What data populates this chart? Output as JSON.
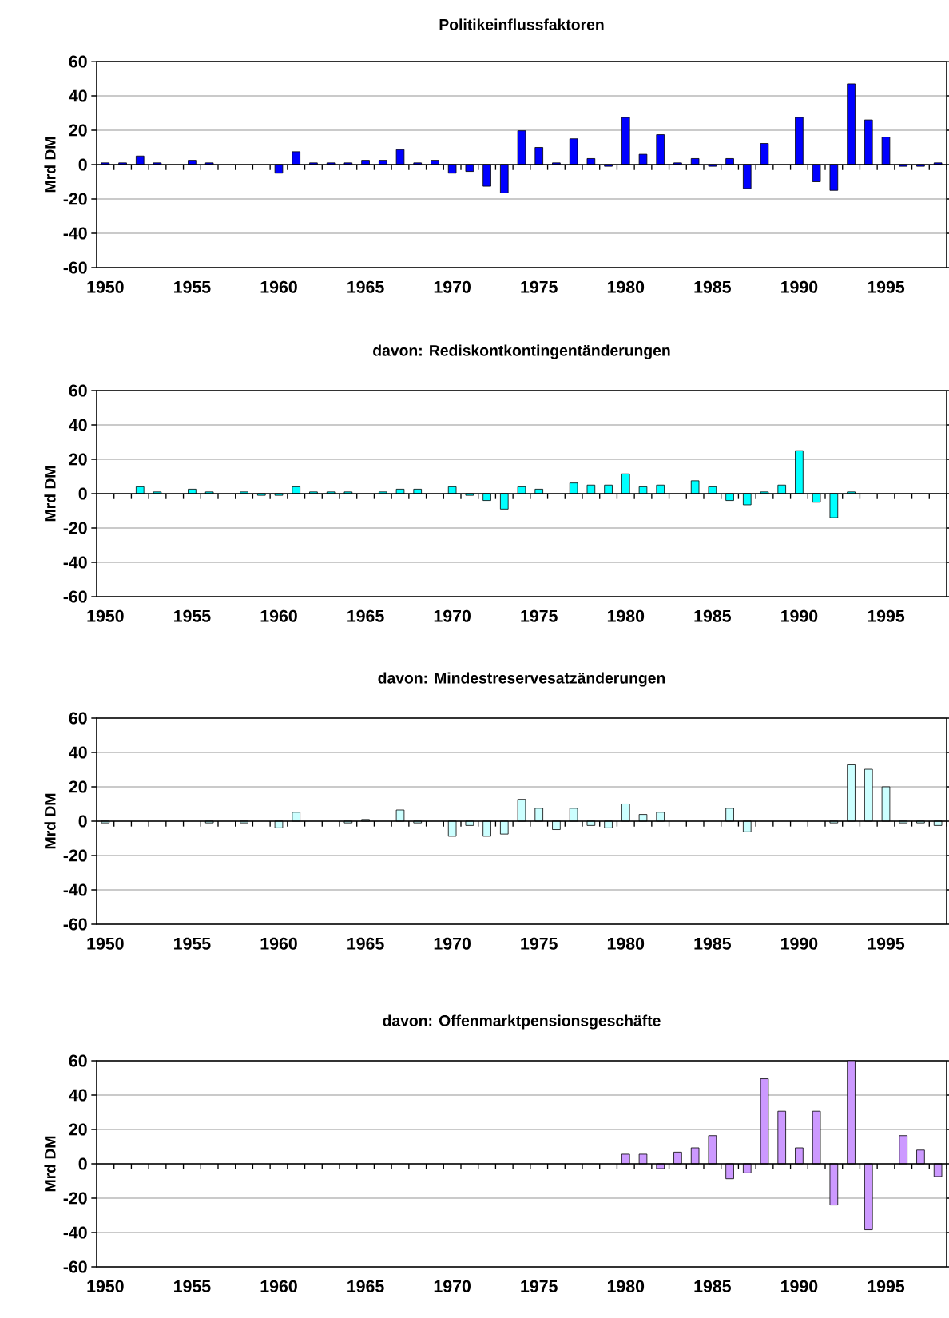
{
  "chart_data": [
    {
      "type": "bar",
      "title": "Politikeinflussfaktoren",
      "ylabel": "Mrd DM",
      "color": "#0000ff",
      "grid": "y",
      "ylim": [
        -60,
        60
      ],
      "yticks": [
        -60,
        -40,
        -20,
        0,
        20,
        40,
        60
      ],
      "categories": [
        "1950",
        null,
        null,
        null,
        null,
        "1955",
        null,
        null,
        null,
        null,
        "1960",
        null,
        null,
        null,
        null,
        "1965",
        null,
        null,
        null,
        null,
        "1970",
        null,
        null,
        null,
        null,
        "1975",
        null,
        null,
        null,
        null,
        "1980",
        null,
        null,
        null,
        null,
        "1985",
        null,
        null,
        null,
        null,
        "1990",
        null,
        null,
        null,
        null,
        "1995",
        null,
        null,
        null
      ],
      "values": [
        1,
        1,
        5,
        1,
        null,
        2.5,
        1,
        null,
        null,
        null,
        -5,
        7.5,
        1,
        1,
        1,
        2.5,
        2.5,
        8.7,
        1,
        2.5,
        -5,
        -4,
        -12.6,
        -16.5,
        19.7,
        10,
        1,
        15,
        3.5,
        -1,
        27.4,
        6,
        17.4,
        1,
        3.5,
        -1,
        3.5,
        -13.9,
        12.3,
        null,
        27.4,
        -10,
        -15,
        47,
        26,
        16,
        -1,
        -1,
        1
      ]
    },
    {
      "type": "bar",
      "title": "davon: Rediskontkontingentänderungen",
      "ylabel": "Mrd DM",
      "color": "#00ffff",
      "grid": "y",
      "ylim": [
        -60,
        60
      ],
      "yticks": [
        -60,
        -40,
        -20,
        0,
        20,
        40,
        60
      ],
      "categories": [
        "1950",
        null,
        null,
        null,
        null,
        "1955",
        null,
        null,
        null,
        null,
        "1960",
        null,
        null,
        null,
        null,
        "1965",
        null,
        null,
        null,
        null,
        "1970",
        null,
        null,
        null,
        null,
        "1975",
        null,
        null,
        null,
        null,
        "1980",
        null,
        null,
        null,
        null,
        "1985",
        null,
        null,
        null,
        null,
        "1990",
        null,
        null,
        null,
        null,
        "1995",
        null,
        null,
        null
      ],
      "values": [
        null,
        null,
        4,
        1,
        null,
        2.6,
        1,
        null,
        1,
        -1,
        -1,
        4,
        1,
        1,
        1,
        null,
        1,
        2.6,
        2.6,
        null,
        4,
        -1,
        -4,
        -9,
        4,
        2.6,
        null,
        6.2,
        5,
        5,
        11.5,
        4,
        5,
        null,
        7.5,
        4,
        -4,
        -6.5,
        1,
        5,
        25,
        -5,
        -14,
        1,
        null,
        null,
        null,
        null,
        null
      ]
    },
    {
      "type": "bar",
      "title": "davon: Mindestreservesatzänderungen",
      "ylabel": "Mrd DM",
      "color": "#ccffff",
      "grid": "y",
      "ylim": [
        -60,
        60
      ],
      "yticks": [
        -60,
        -40,
        -20,
        0,
        20,
        40,
        60
      ],
      "categories": [
        "1950",
        null,
        null,
        null,
        null,
        "1955",
        null,
        null,
        null,
        null,
        "1960",
        null,
        null,
        null,
        null,
        "1965",
        null,
        null,
        null,
        null,
        "1970",
        null,
        null,
        null,
        null,
        "1975",
        null,
        null,
        null,
        null,
        "1980",
        null,
        null,
        null,
        null,
        "1985",
        null,
        null,
        null,
        null,
        "1990",
        null,
        null,
        null,
        null,
        "1995",
        null,
        null,
        null
      ],
      "values": [
        -1,
        null,
        null,
        null,
        null,
        null,
        -1,
        null,
        -1,
        null,
        -3.9,
        5.2,
        null,
        null,
        -1,
        1,
        null,
        6.5,
        -1,
        null,
        -8.8,
        -2.5,
        -8.8,
        -7.5,
        12.7,
        7.5,
        -4.9,
        7.5,
        -2.5,
        -3.9,
        10,
        3.9,
        5.2,
        null,
        null,
        null,
        7.5,
        -6.2,
        null,
        null,
        null,
        null,
        -1,
        32.8,
        30.2,
        20,
        -1,
        -1,
        -2.5
      ]
    },
    {
      "type": "bar",
      "title": "davon: Offenmarktpensionsgeschäfte",
      "ylabel": "Mrd DM",
      "color": "#cc99ff",
      "grid": "y",
      "ylim": [
        -60,
        60
      ],
      "yticks": [
        -60,
        -40,
        -20,
        0,
        20,
        40,
        60
      ],
      "categories": [
        "1950",
        null,
        null,
        null,
        null,
        "1955",
        null,
        null,
        null,
        null,
        "1960",
        null,
        null,
        null,
        null,
        "1965",
        null,
        null,
        null,
        null,
        "1970",
        null,
        null,
        null,
        null,
        "1975",
        null,
        null,
        null,
        null,
        "1980",
        null,
        null,
        null,
        null,
        "1985",
        null,
        null,
        null,
        null,
        "1990",
        null,
        null,
        null,
        null,
        "1995",
        null,
        null,
        null
      ],
      "values": [
        null,
        null,
        null,
        null,
        null,
        null,
        null,
        null,
        null,
        null,
        null,
        null,
        null,
        null,
        null,
        null,
        null,
        null,
        null,
        null,
        null,
        null,
        null,
        null,
        null,
        null,
        null,
        null,
        null,
        null,
        5.6,
        5.6,
        -2.8,
        6.8,
        9.3,
        16.4,
        -8.7,
        -5.3,
        49.5,
        30.6,
        9.3,
        30.6,
        -24,
        60,
        -38.4,
        null,
        16.4,
        8,
        -7.4
      ]
    }
  ]
}
